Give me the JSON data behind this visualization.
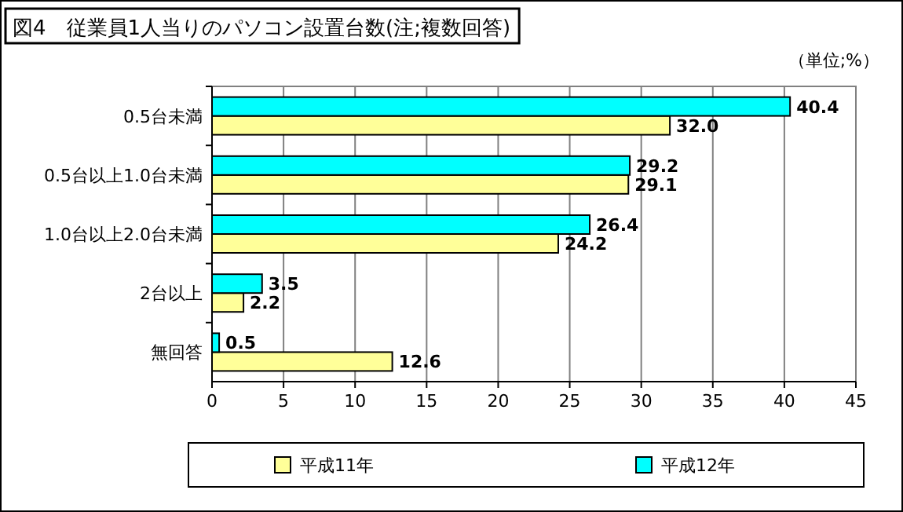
{
  "chart_data": {
    "type": "bar",
    "orientation": "horizontal",
    "title": "図4　従業員1人当りのパソコン設置台数(注;複数回答)",
    "annotations": [
      "（単位;%）"
    ],
    "categories": [
      "0.5台未満",
      "0.5台以上1.0台未満",
      "1.0台以上2.0台未満",
      "2台以上",
      "無回答"
    ],
    "series": [
      {
        "name": "平成11年",
        "color": "#ffff99",
        "values": [
          32.0,
          29.1,
          24.2,
          2.2,
          12.6
        ],
        "value_labels": [
          "32.0",
          "29.1",
          "24.2",
          "2.2",
          "12.6"
        ]
      },
      {
        "name": "平成12年",
        "color": "#00ffff",
        "values": [
          40.4,
          29.2,
          26.4,
          3.5,
          0.5
        ],
        "value_labels": [
          "40.4",
          "29.2",
          "26.4",
          "3.5",
          "0.5"
        ]
      }
    ],
    "xlim": [
      0,
      45
    ],
    "xticks": [
      0,
      5,
      10,
      15,
      20,
      25,
      30,
      35,
      40,
      45
    ],
    "grid": "x",
    "legend": "bottom"
  }
}
